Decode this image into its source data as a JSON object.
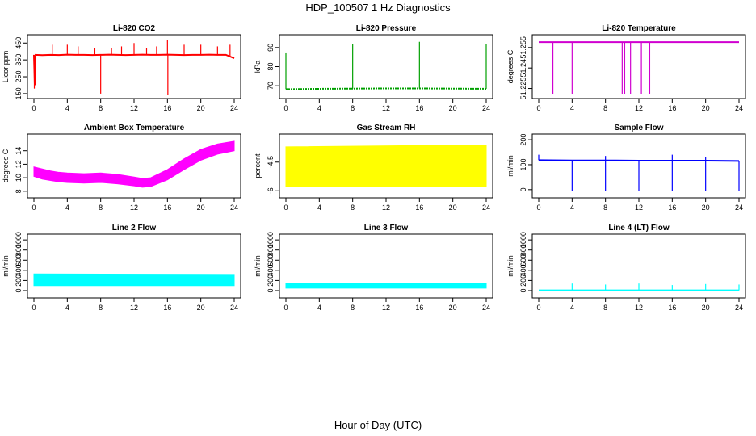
{
  "title": "HDP_100507  1 Hz Diagnostics",
  "xlabel": "Hour of Day (UTC)",
  "chart_data": [
    {
      "type": "line",
      "title": "Li-820 CO2",
      "ylabel": "Licor ppm",
      "color": "#ff0000",
      "xlim": [
        0,
        24
      ],
      "ylim": [
        140,
        480
      ],
      "xticks": [
        0,
        4,
        8,
        12,
        16,
        20,
        24
      ],
      "yticks": [
        150,
        250,
        350,
        450
      ],
      "series": [
        {
          "x": [
            0,
            0.1,
            0.2,
            1,
            2,
            3,
            4,
            5,
            6,
            7,
            8,
            9,
            10,
            11,
            12,
            13,
            14,
            15,
            16,
            17,
            18,
            19,
            20,
            21,
            22,
            23,
            24
          ],
          "y": [
            380,
            200,
            380,
            378,
            380,
            379,
            381,
            380,
            380,
            379,
            380,
            381,
            380,
            379,
            380,
            381,
            380,
            380,
            381,
            380,
            379,
            380,
            380,
            381,
            380,
            380,
            360
          ]
        }
      ],
      "spikes": [
        {
          "x": 0.05,
          "y": 180
        },
        {
          "x": 2.2,
          "y": 440
        },
        {
          "x": 4,
          "y": 440
        },
        {
          "x": 5.3,
          "y": 430
        },
        {
          "x": 7.3,
          "y": 420
        },
        {
          "x": 8,
          "y": 150
        },
        {
          "x": 9.3,
          "y": 420
        },
        {
          "x": 10.5,
          "y": 430
        },
        {
          "x": 12,
          "y": 450
        },
        {
          "x": 13.5,
          "y": 420
        },
        {
          "x": 14.7,
          "y": 430
        },
        {
          "x": 16,
          "y": 470
        },
        {
          "x": 16.05,
          "y": 140
        },
        {
          "x": 18,
          "y": 440
        },
        {
          "x": 20,
          "y": 440
        },
        {
          "x": 22,
          "y": 430
        },
        {
          "x": 23.5,
          "y": 440
        }
      ]
    },
    {
      "type": "line",
      "title": "Li-820 Pressure",
      "ylabel": "kPa",
      "color": "#00a000",
      "dashed": true,
      "xlim": [
        0,
        24
      ],
      "ylim": [
        65,
        95
      ],
      "xticks": [
        0,
        4,
        8,
        12,
        16,
        20,
        24
      ],
      "yticks": [
        70,
        80,
        90
      ],
      "series": [
        {
          "x": [
            0,
            4,
            8,
            12,
            16,
            20,
            24
          ],
          "y": [
            68.2,
            68.4,
            68.5,
            68.6,
            68.6,
            68.5,
            68.4
          ]
        }
      ],
      "spikes": [
        {
          "x": 0,
          "y": 87
        },
        {
          "x": 8,
          "y": 92
        },
        {
          "x": 16,
          "y": 93
        },
        {
          "x": 24,
          "y": 92
        }
      ]
    },
    {
      "type": "line",
      "title": "Li-820 Temperature",
      "ylabel": "degrees C",
      "color": "#d000d0",
      "xlim": [
        0,
        24
      ],
      "ylim": [
        51.22,
        51.262
      ],
      "xticks": [
        0,
        4,
        8,
        12,
        16,
        20,
        24
      ],
      "yticks": [
        51.225,
        51.24,
        51.255
      ],
      "series": [
        {
          "x": [
            0,
            24
          ],
          "y": [
            51.259,
            51.259
          ]
        }
      ],
      "drops": [
        {
          "x": 1.7,
          "y": 51.221
        },
        {
          "x": 4,
          "y": 51.221
        },
        {
          "x": 10,
          "y": 51.221
        },
        {
          "x": 10.3,
          "y": 51.221
        },
        {
          "x": 11,
          "y": 51.221
        },
        {
          "x": 12.3,
          "y": 51.221
        },
        {
          "x": 13.3,
          "y": 51.221
        }
      ]
    },
    {
      "type": "area",
      "title": "Ambient Box Temperature",
      "ylabel": "degrees C",
      "color": "#ff00ff",
      "xlim": [
        0,
        24
      ],
      "ylim": [
        7.5,
        16
      ],
      "xticks": [
        0,
        4,
        8,
        12,
        16,
        20,
        24
      ],
      "yticks": [
        8,
        10,
        12,
        14
      ],
      "upper": {
        "x": [
          0,
          1,
          2,
          3,
          4,
          6,
          8,
          10,
          12,
          13,
          14,
          16,
          18,
          20,
          22,
          24
        ],
        "y": [
          11.6,
          11.3,
          11.0,
          10.8,
          10.7,
          10.6,
          10.7,
          10.5,
          10.1,
          9.9,
          10.0,
          11.2,
          12.8,
          14.2,
          15.0,
          15.4
        ]
      },
      "lower": {
        "x": [
          0,
          1,
          2,
          3,
          4,
          6,
          8,
          10,
          12,
          13,
          14,
          16,
          18,
          20,
          22,
          24
        ],
        "y": [
          10.2,
          9.8,
          9.6,
          9.4,
          9.3,
          9.2,
          9.3,
          9.1,
          8.8,
          8.6,
          8.7,
          9.7,
          11.2,
          12.6,
          13.5,
          14.0
        ]
      }
    },
    {
      "type": "area",
      "title": "Gas Stream RH",
      "ylabel": "percent",
      "color": "#ffff00",
      "xlim": [
        0,
        24
      ],
      "ylim": [
        -6.2,
        -3.2
      ],
      "xticks": [
        0,
        4,
        8,
        12,
        16,
        20,
        24
      ],
      "yticks": [
        -6.0,
        -4.5
      ],
      "upper": {
        "x": [
          0,
          24
        ],
        "y": [
          -3.7,
          -3.6
        ]
      },
      "lower": {
        "x": [
          0,
          24
        ],
        "y": [
          -5.8,
          -5.8
        ]
      }
    },
    {
      "type": "line",
      "title": "Sample Flow",
      "ylabel": "ml/min",
      "color": "#0000ff",
      "xlim": [
        0,
        24
      ],
      "ylim": [
        -20,
        210
      ],
      "xticks": [
        0,
        4,
        8,
        12,
        16,
        20,
        24
      ],
      "yticks": [
        0,
        100,
        200
      ],
      "series": [
        {
          "x": [
            0,
            4,
            8,
            12,
            16,
            20,
            24
          ],
          "y": [
            118,
            117,
            117,
            116,
            116,
            116,
            115
          ]
        }
      ],
      "drops": [
        {
          "x": 4,
          "y": -5
        },
        {
          "x": 8,
          "y": -5
        },
        {
          "x": 12,
          "y": -5
        },
        {
          "x": 16,
          "y": -5
        },
        {
          "x": 20,
          "y": -5
        },
        {
          "x": 24,
          "y": -5
        }
      ],
      "spikes": [
        {
          "x": 0,
          "y": 140
        },
        {
          "x": 8,
          "y": 135
        },
        {
          "x": 16,
          "y": 140
        },
        {
          "x": 20,
          "y": 130
        }
      ]
    },
    {
      "type": "area",
      "title": "Line 2 Flow",
      "ylabel": "ml/min",
      "color": "#00ffff",
      "xlim": [
        0,
        24
      ],
      "ylim": [
        -80,
        1050
      ],
      "xticks": [
        0,
        4,
        8,
        12,
        16,
        20,
        24
      ],
      "yticks": [
        0,
        200,
        400,
        600,
        800,
        1000
      ],
      "upper": {
        "x": [
          0,
          24
        ],
        "y": [
          330,
          320
        ]
      },
      "lower": {
        "x": [
          0,
          24
        ],
        "y": [
          100,
          100
        ]
      }
    },
    {
      "type": "area",
      "title": "Line 3 Flow",
      "ylabel": "ml/min",
      "color": "#00ffff",
      "xlim": [
        0,
        24
      ],
      "ylim": [
        -80,
        1050
      ],
      "xticks": [
        0,
        4,
        8,
        12,
        16,
        20,
        24
      ],
      "yticks": [
        0,
        200,
        400,
        600,
        800,
        1000
      ],
      "upper": {
        "x": [
          0,
          24
        ],
        "y": [
          150,
          150
        ]
      },
      "lower": {
        "x": [
          0,
          24
        ],
        "y": [
          50,
          50
        ]
      }
    },
    {
      "type": "line",
      "title": "Line 4 (LT) Flow",
      "ylabel": "ml/min",
      "color": "#00ffff",
      "xlim": [
        0,
        24
      ],
      "ylim": [
        -80,
        1050
      ],
      "xticks": [
        0,
        4,
        8,
        12,
        16,
        20,
        24
      ],
      "yticks": [
        0,
        200,
        400,
        600,
        800,
        1000
      ],
      "series": [
        {
          "x": [
            0,
            24
          ],
          "y": [
            5,
            5
          ]
        }
      ],
      "spikes": [
        {
          "x": 4,
          "y": 140
        },
        {
          "x": 8,
          "y": 120
        },
        {
          "x": 12,
          "y": 140
        },
        {
          "x": 16,
          "y": 110
        },
        {
          "x": 20,
          "y": 130
        },
        {
          "x": 24,
          "y": 120
        }
      ]
    }
  ]
}
